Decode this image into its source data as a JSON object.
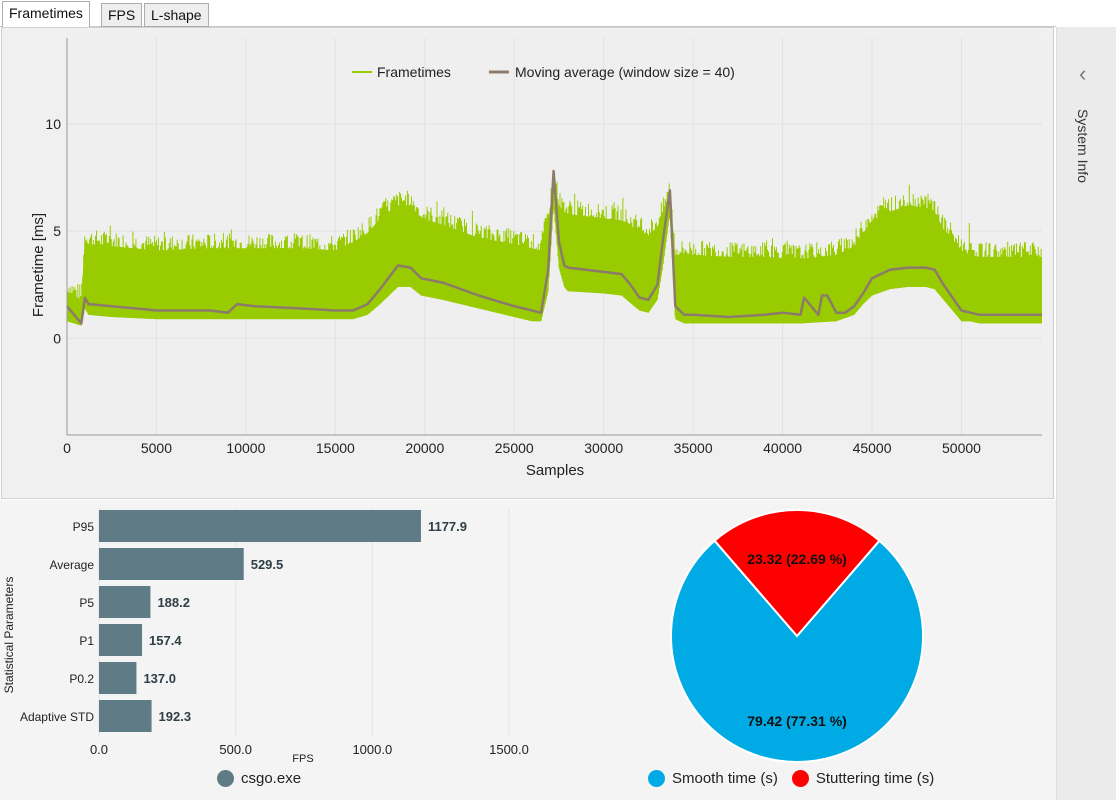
{
  "tabs": [
    {
      "label": "Frametimes"
    },
    {
      "label": "FPS"
    },
    {
      "label": "L-shape"
    }
  ],
  "side_panel": {
    "label": "System Info",
    "chevron_icon": "chevron-left-icon"
  },
  "frametime_chart": {
    "chart_data": {
      "type": "line",
      "xlabel": "Samples",
      "ylabel": "Frametime [ms]",
      "xlim": [
        0,
        54500
      ],
      "ylim": [
        -4.5,
        14
      ],
      "xticks": [
        0,
        5000,
        10000,
        15000,
        20000,
        25000,
        30000,
        35000,
        40000,
        45000,
        50000
      ],
      "yticks": [
        0,
        5,
        10
      ],
      "legend": [
        "Frametimes",
        "Moving average (window size = 40)"
      ],
      "colors": {
        "frametimes": "#99cc00",
        "moving_average": "#8c7b6b"
      },
      "series": [
        {
          "name": "Moving average (window size = 40)",
          "x": [
            0,
            800,
            1000,
            1200,
            2500,
            5000,
            8000,
            9000,
            9500,
            10500,
            13000,
            15000,
            16000,
            16800,
            17500,
            18500,
            19200,
            19800,
            21000,
            23000,
            25000,
            26000,
            26500,
            26900,
            27200,
            27500,
            27800,
            28000,
            29000,
            30000,
            31000,
            31500,
            32000,
            32500,
            33000,
            33300,
            33700,
            34000,
            34500,
            35000,
            37000,
            39000,
            40000,
            41000,
            41200,
            42000,
            42200,
            42500,
            43000,
            43500,
            44000,
            44500,
            45000,
            46000,
            47000,
            48000,
            48500,
            49000,
            50000,
            50500,
            51000,
            53000,
            54500
          ],
          "y": [
            1.5,
            0.7,
            1.9,
            1.6,
            1.5,
            1.3,
            1.3,
            1.2,
            1.6,
            1.5,
            1.4,
            1.3,
            1.3,
            1.6,
            2.3,
            3.4,
            3.3,
            2.8,
            2.6,
            2.0,
            1.5,
            1.3,
            1.2,
            3.2,
            7.8,
            4.5,
            3.4,
            3.3,
            3.2,
            3.1,
            3.0,
            2.5,
            1.9,
            1.8,
            2.5,
            4.5,
            6.9,
            1.5,
            1.1,
            1.1,
            1.0,
            1.1,
            1.2,
            1.1,
            1.9,
            1.1,
            2.0,
            2.0,
            1.2,
            1.2,
            1.5,
            2.1,
            2.8,
            3.2,
            3.3,
            3.3,
            3.2,
            2.5,
            1.3,
            1.2,
            1.1,
            1.1,
            1.1
          ]
        },
        {
          "name": "Frametimes",
          "band": "min-max envelope",
          "x": [
            0,
            800,
            1000,
            1200,
            2500,
            5000,
            8000,
            10000,
            13000,
            15000,
            16000,
            16800,
            17500,
            18500,
            19200,
            19800,
            21000,
            23000,
            25000,
            26000,
            26500,
            26900,
            27200,
            27500,
            27800,
            28000,
            30000,
            31000,
            32000,
            32500,
            33000,
            33300,
            33700,
            34000,
            34500,
            35000,
            37000,
            39000,
            41000,
            43000,
            44000,
            44500,
            45000,
            46000,
            47000,
            48000,
            48500,
            49000,
            50000,
            50500,
            51000,
            53000,
            54500
          ],
          "ymin": [
            0.8,
            0.6,
            1.4,
            1.1,
            1.0,
            0.9,
            0.9,
            0.9,
            0.9,
            0.9,
            0.9,
            1.1,
            1.6,
            2.4,
            2.4,
            2.0,
            1.8,
            1.4,
            1.0,
            0.8,
            0.8,
            2.2,
            6.2,
            3.3,
            2.4,
            2.2,
            2.1,
            2.0,
            1.3,
            1.2,
            1.8,
            3.3,
            5.8,
            0.9,
            0.7,
            0.7,
            0.7,
            0.7,
            0.7,
            0.8,
            1.1,
            1.6,
            2.0,
            2.3,
            2.4,
            2.4,
            2.3,
            1.8,
            0.8,
            0.8,
            0.7,
            0.7,
            0.7
          ],
          "ymax": [
            2.9,
            2.5,
            5.3,
            5.1,
            5.0,
            4.8,
            4.9,
            4.9,
            4.9,
            4.8,
            5.2,
            5.6,
            6.3,
            6.9,
            6.9,
            6.3,
            6.0,
            5.4,
            5.1,
            4.9,
            4.8,
            6.3,
            7.8,
            6.9,
            6.6,
            6.5,
            6.3,
            6.2,
            5.7,
            5.5,
            5.9,
            6.5,
            7.5,
            4.6,
            4.6,
            4.6,
            4.5,
            4.5,
            4.4,
            4.6,
            5.0,
            5.6,
            6.2,
            6.6,
            6.9,
            6.8,
            6.6,
            5.8,
            4.8,
            4.6,
            4.5,
            4.5,
            4.5
          ]
        }
      ]
    }
  },
  "stats_chart": {
    "chart_data": {
      "type": "bar",
      "orientation": "horizontal",
      "ylabel": "Statistical Parameters",
      "xlabel": "FPS",
      "xlim": [
        0,
        1500
      ],
      "xticks": [
        "0.0",
        "500.0",
        "1000.0",
        "1500.0"
      ],
      "categories": [
        "P95",
        "Average",
        "P5",
        "P1",
        "P0.2",
        "Adaptive STD"
      ],
      "values": [
        1177.9,
        529.5,
        188.2,
        157.4,
        137.0,
        192.3
      ],
      "value_labels": [
        "1177.9",
        "529.5",
        "188.2",
        "157.4",
        "137.0",
        "192.3"
      ],
      "color": "#5f7b85",
      "legend": "csgo.exe"
    }
  },
  "pie_chart": {
    "chart_data": {
      "type": "pie",
      "slices": [
        {
          "name": "Smooth time (s)",
          "value": 79.42,
          "label": "79.42 (77.31 %)",
          "color": "#00aae4"
        },
        {
          "name": "Stuttering time (s)",
          "value": 23.32,
          "label": "23.32 (22.69 %)",
          "color": "#ff0000"
        }
      ]
    }
  }
}
